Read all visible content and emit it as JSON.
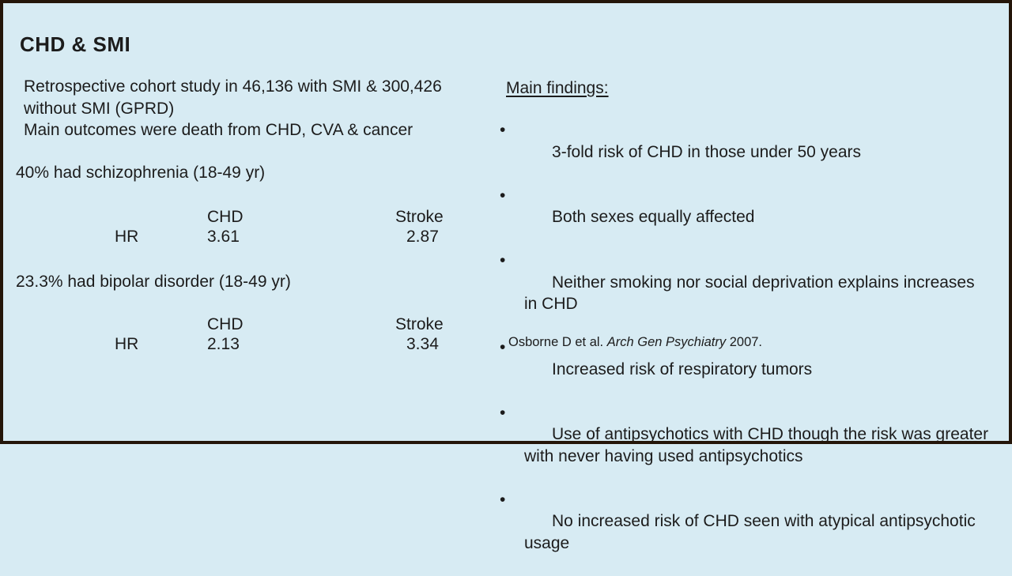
{
  "slide": {
    "title": "CHD & SMI",
    "colors": {
      "background": "#d7ebf3",
      "border": "#241509",
      "text": "#1c1c1c"
    }
  },
  "left": {
    "study": "Retrospective cohort study in 46,136 with SMI & 300,426\nwithout SMI (GPRD)",
    "outcomes": "Main outcomes were death from CHD, CVA & cancer",
    "schizophrenia": {
      "label": "40% had schizophrenia (18-49 yr)",
      "table": {
        "row_label": "HR",
        "col1": "CHD",
        "col2": "Stroke",
        "chd": "3.61",
        "stroke": "2.87"
      }
    },
    "bipolar": {
      "label": "23.3% had bipolar disorder (18-49 yr)",
      "table": {
        "row_label": "HR",
        "col1": "CHD",
        "col2": "Stroke",
        "chd": "2.13",
        "stroke": "3.34"
      }
    }
  },
  "right": {
    "heading": "Main findings:",
    "bullet_char": "•",
    "bullets": [
      "3-fold risk of CHD in those under 50 years",
      "Both sexes equally affected",
      "Neither smoking nor social deprivation explains increases\nin CHD",
      "Increased risk of respiratory tumors",
      "Use of antipsychotics with CHD though the risk was greater\nwith never having used antipsychotics",
      "No increased risk of CHD seen with atypical antipsychotic\nusage"
    ],
    "citation": {
      "authors": "Osborne D et al.",
      "journal": "Arch Gen Psychiatry",
      "year": "2007."
    }
  }
}
